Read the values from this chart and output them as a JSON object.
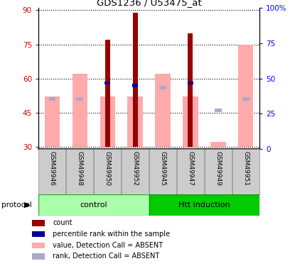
{
  "title": "GDS1236 / U53475_at",
  "samples": [
    "GSM49946",
    "GSM49948",
    "GSM49950",
    "GSM49952",
    "GSM49945",
    "GSM49947",
    "GSM49949",
    "GSM49951"
  ],
  "red_bars": [
    0,
    0,
    77,
    89,
    0,
    80,
    0,
    0
  ],
  "blue_bars": [
    0,
    0,
    58,
    57,
    0,
    58,
    0,
    0
  ],
  "pink_bars": [
    52,
    62,
    52,
    52,
    62,
    52,
    32,
    75
  ],
  "light_blue_bars": [
    51,
    51,
    0,
    51,
    56,
    0,
    46,
    51
  ],
  "ylim_left": [
    29,
    91
  ],
  "ylim_right": [
    0,
    100
  ],
  "yticks_left": [
    30,
    45,
    60,
    75,
    90
  ],
  "ytick_labels_left": [
    "30",
    "45",
    "60",
    "75",
    "90"
  ],
  "yticks_right": [
    0,
    25,
    50,
    75,
    100
  ],
  "ytick_labels_right": [
    "0",
    "25",
    "50",
    "75",
    "100%"
  ],
  "red_color": "#990000",
  "blue_color": "#000099",
  "pink_color": "#FFAAAA",
  "light_blue_color": "#AAAACC",
  "control_color": "#AAFFAA",
  "htt_color": "#00CC00",
  "bar_base": 30,
  "legend_items": [
    "count",
    "percentile rank within the sample",
    "value, Detection Call = ABSENT",
    "rank, Detection Call = ABSENT"
  ],
  "group_labels": [
    "control",
    "Htt induction"
  ]
}
